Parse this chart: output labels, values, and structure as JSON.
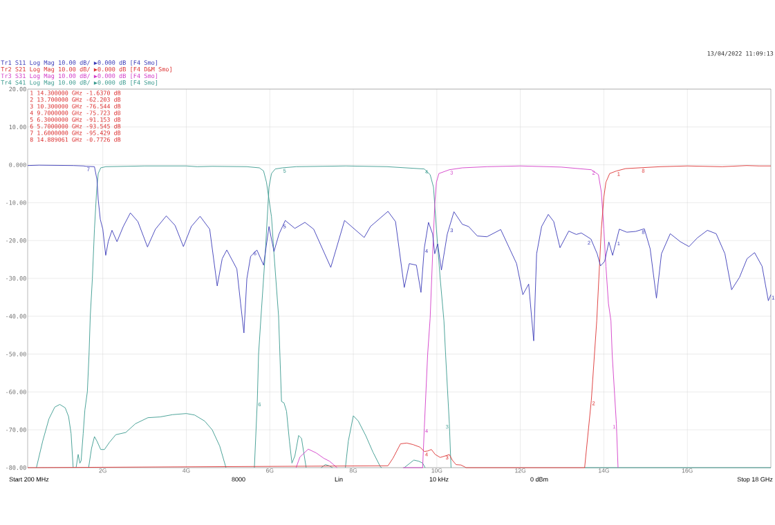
{
  "chart_data": {
    "type": "line",
    "xlim": [
      0.2,
      18
    ],
    "ylim": [
      -80,
      20
    ],
    "xticks": [
      {
        "value": 2,
        "label": "2G"
      },
      {
        "value": 4,
        "label": "4G"
      },
      {
        "value": 6,
        "label": "6G"
      },
      {
        "value": 8,
        "label": "8G"
      },
      {
        "value": 10,
        "label": "10G"
      },
      {
        "value": 12,
        "label": "12G"
      },
      {
        "value": 14,
        "label": "14G"
      },
      {
        "value": 16,
        "label": "16G"
      }
    ],
    "yticks": [
      {
        "value": 20,
        "label": "20.00"
      },
      {
        "value": 10,
        "label": "10.00"
      },
      {
        "value": 0,
        "label": "0.000"
      },
      {
        "value": -10,
        "label": "-10.00"
      },
      {
        "value": -20,
        "label": "-20.00"
      },
      {
        "value": -30,
        "label": "-30.00"
      },
      {
        "value": -40,
        "label": "-40.00"
      },
      {
        "value": -50,
        "label": "-50.00"
      },
      {
        "value": -60,
        "label": "-60.00"
      },
      {
        "value": -70,
        "label": "-70.00"
      },
      {
        "value": -80,
        "label": "-80.00"
      }
    ],
    "grid": true,
    "legend": "top left",
    "series": [
      {
        "name": "Tr1 S11 Log Mag 10.00 dB/ ▶0.000 dB [F4 Smo]",
        "color": "#3a3ab8",
        "x": [
          0.2,
          0.47,
          1.3,
          1.54,
          1.6,
          1.8,
          1.86,
          1.89,
          1.94,
          2.0,
          2.07,
          2.13,
          2.22,
          2.34,
          2.49,
          2.66,
          2.84,
          3.07,
          3.26,
          3.52,
          3.73,
          3.93,
          4.12,
          4.33,
          4.56,
          4.74,
          4.86,
          4.97,
          5.21,
          5.3,
          5.38,
          5.45,
          5.54,
          5.69,
          5.85,
          5.98,
          6.1,
          6.22,
          6.37,
          6.6,
          6.84,
          7.05,
          7.46,
          7.79,
          8.26,
          8.41,
          8.83,
          9.01,
          9.22,
          9.34,
          9.51,
          9.62,
          9.7,
          9.8,
          9.9,
          9.95,
          10.02,
          10.11,
          10.25,
          10.41,
          10.61,
          10.76,
          10.97,
          11.2,
          11.53,
          11.91,
          12.06,
          12.2,
          12.32,
          12.39,
          12.51,
          12.67,
          12.8,
          12.95,
          13.16,
          13.34,
          13.46,
          13.69,
          13.84,
          13.92,
          14.02,
          14.12,
          14.21,
          14.37,
          14.55,
          14.76,
          14.97,
          15.11,
          15.26,
          15.38,
          15.59,
          15.83,
          16.04,
          16.24,
          16.48,
          16.69,
          16.9,
          17.06,
          17.25,
          17.43,
          17.61,
          17.79,
          17.94,
          18.0
        ],
        "values": [
          -0.2,
          -0.1,
          -0.2,
          -0.3,
          -0.4,
          -0.5,
          -3.9,
          -9.2,
          -14.4,
          -17.0,
          -23.9,
          -20.3,
          -17.3,
          -20.3,
          -16.3,
          -12.7,
          -15.0,
          -21.7,
          -17.0,
          -13.5,
          -16.0,
          -21.6,
          -16.3,
          -13.6,
          -17.0,
          -32.0,
          -24.8,
          -22.5,
          -27.5,
          -36.6,
          -44.4,
          -30.1,
          -24.2,
          -22.5,
          -26.5,
          -16.3,
          -22.9,
          -18.3,
          -14.7,
          -16.8,
          -15.2,
          -17.0,
          -27.1,
          -14.7,
          -19.2,
          -16.3,
          -12.3,
          -15.0,
          -32.4,
          -26.1,
          -26.5,
          -33.7,
          -22.0,
          -15.2,
          -18.3,
          -23.5,
          -20.9,
          -27.8,
          -18.3,
          -12.4,
          -15.7,
          -16.3,
          -18.8,
          -19.0,
          -17.1,
          -26.1,
          -34.3,
          -31.5,
          -46.5,
          -23.5,
          -16.3,
          -13.1,
          -15.0,
          -21.9,
          -17.5,
          -18.4,
          -18.0,
          -19.6,
          -23.5,
          -26.7,
          -25.5,
          -20.4,
          -23.9,
          -17.0,
          -17.8,
          -17.6,
          -16.9,
          -22.2,
          -35.2,
          -23.5,
          -18.2,
          -20.3,
          -21.6,
          -19.3,
          -17.3,
          -18.2,
          -23.5,
          -33.0,
          -29.7,
          -24.8,
          -23.2,
          -26.8,
          -35.9,
          -34.3
        ]
      },
      {
        "name": "Tr2 S21 Log Mag 10.00 dB/ ▶0.000 dB [F4 D&M Smo]",
        "color": "#dc3232",
        "x": [
          0.2,
          8.83,
          8.95,
          9.13,
          9.28,
          9.43,
          9.6,
          9.7,
          9.78,
          9.87,
          9.96,
          10.08,
          10.2,
          10.3,
          10.37,
          10.46,
          10.58,
          10.7,
          13.54,
          13.7,
          13.83,
          13.88,
          13.94,
          14.0,
          14.05,
          14.14,
          14.3,
          14.52,
          14.889061,
          15.35,
          16.0,
          16.83,
          17.42,
          17.72,
          18.0
        ],
        "values": [
          -80,
          -79.5,
          -77.5,
          -73.7,
          -73.5,
          -73.9,
          -74.6,
          -75.723,
          -75.6,
          -75.2,
          -76.5,
          -77.3,
          -76.9,
          -76.544,
          -78.0,
          -79.2,
          -79.3,
          -80,
          -80,
          -62.203,
          -41.2,
          -30.1,
          -17.0,
          -8.5,
          -4.6,
          -2.3,
          -1.637,
          -1.0,
          -0.7726,
          -0.5,
          -0.3,
          -0.5,
          -0.2,
          -0.3,
          -0.3
        ]
      },
      {
        "name": "Tr3 S31 Log Mag 10.00 dB/ ▶0.000 dB [F4 Smo]",
        "color": "#d23cc8",
        "x": [
          6.63,
          6.72,
          6.92,
          7.11,
          7.29,
          7.43,
          7.61,
          8.2,
          9.19,
          9.66,
          9.7,
          9.78,
          9.84,
          9.9,
          9.95,
          9.99,
          10.05,
          10.3,
          10.61,
          11.2,
          12.0,
          12.98,
          13.7,
          13.87,
          13.94,
          14.0,
          14.05,
          14.11,
          14.17,
          14.2,
          14.3,
          14.34
        ],
        "values": [
          -80,
          -77.2,
          -75.1,
          -76.1,
          -77.5,
          -78.3,
          -80,
          null,
          -80,
          -80,
          -69.5,
          -50.1,
          -40.5,
          -23.5,
          -10.5,
          -4.6,
          -2.3,
          -1.3,
          -0.8,
          -0.5,
          -0.3,
          -0.6,
          -1.3,
          -2.6,
          -7.2,
          -17.0,
          -26.8,
          -36.6,
          -41.2,
          -50.1,
          -68.4,
          -80
        ]
      },
      {
        "name": "Tr4 S41 Log Mag 10.00 dB/ ▶0.000 dB [F4 Smo]",
        "color": "#3a9a8e",
        "x": [
          1.66,
          1.73,
          1.8,
          1.86,
          1.95,
          2.04,
          2.16,
          2.31,
          2.55,
          2.78,
          3.08,
          3.37,
          3.67,
          4.0,
          4.2,
          4.44,
          4.62,
          4.8,
          4.95,
          5.3,
          5.63,
          5.7,
          5.73,
          5.79,
          5.89,
          5.98,
          6.04,
          6.13,
          6.3,
          6.63,
          7.82,
          8.81,
          9.7,
          9.84,
          9.92,
          9.99,
          10.08,
          10.17,
          10.21,
          10.3,
          10.34,
          12.0,
          13.54,
          18.0
        ],
        "values": [
          -80,
          -74.9,
          -71.8,
          -73.0,
          -75.2,
          -75.2,
          -73.3,
          -71.3,
          -70.7,
          -68.4,
          -66.8,
          -66.6,
          -66.0,
          -65.7,
          -66.1,
          -67.7,
          -70.0,
          -74.3,
          -80,
          null,
          -80,
          -62.5,
          -50.1,
          -39.9,
          -23.5,
          -5.9,
          -2.3,
          -1.1,
          -0.8,
          -0.5,
          -0.3,
          -0.5,
          -1.1,
          -2.6,
          -5.9,
          -17.0,
          -30.0,
          -41.2,
          -50.1,
          -68.4,
          -80,
          null,
          -80,
          -80
        ]
      },
      {
        "color": "#3a9a8e",
        "x": [
          0.41,
          0.56,
          0.71,
          0.85,
          0.97,
          1.1,
          1.18,
          1.24,
          1.29,
          1.32,
          1.36,
          1.41,
          1.45,
          1.48,
          1.53,
          1.57,
          1.63,
          1.67,
          1.7,
          1.75,
          1.8,
          1.85,
          1.89,
          1.95,
          2.07,
          3.0,
          4.0,
          4.26,
          4.62,
          5.45,
          5.75,
          5.85,
          5.92,
          6.04,
          6.1,
          6.21,
          6.28,
          6.34,
          6.4,
          6.47,
          6.53,
          6.6,
          6.69,
          6.76,
          6.87,
          7.05,
          7.23,
          7.33,
          7.42,
          7.5,
          7.65,
          7.81,
          7.88,
          8.0,
          8.12,
          8.3,
          8.47,
          8.65,
          8.68,
          8.95,
          9.22,
          9.45,
          9.57,
          9.66,
          9.72
        ],
        "values": [
          -80,
          -73.0,
          -67.1,
          -64.0,
          -63.3,
          -64.2,
          -66.5,
          -71.0,
          -80,
          null,
          -80,
          -76.5,
          -78.8,
          -78.2,
          -71.0,
          -64.8,
          -59.9,
          -50.1,
          -39.9,
          -30.1,
          -17.0,
          -7.2,
          -2.3,
          -0.8,
          -0.5,
          -0.3,
          -0.3,
          -0.5,
          -0.4,
          -0.5,
          -0.8,
          -1.6,
          -4.6,
          -13.7,
          -23.5,
          -40.0,
          -62.5,
          -62.9,
          -65.1,
          -73.0,
          -78.8,
          -76.9,
          -71.5,
          -72.3,
          -80,
          null,
          -80,
          -79.2,
          -79.5,
          -80,
          null,
          -80,
          -73.0,
          -66.3,
          -67.7,
          -71.6,
          -75.9,
          -79.8,
          -80,
          null,
          -80,
          -78.0,
          -78.3,
          -78.8,
          -80
        ]
      }
    ],
    "annotations": [
      "13/04/2022 11:09:13",
      "1 14.300000 GHz -1.6370 dB",
      "2 13.700000 GHz -62.203 dB",
      "3 10.300000 GHz -76.544 dB",
      "4 9.7000000 GHz -75.723 dB",
      "5 6.3000000 GHz -91.153 dB",
      "6 5.7000000 GHz -93.545 dB",
      "7 1.6000000 GHz -95.429 dB",
      "8 14.889061 GHz -0.7726 dB",
      "Start 200 MHz",
      "8000",
      "Lin",
      "10 kHz",
      "0 dBm",
      "Stop 18 GHz",
      {
        "text": "7",
        "x": 1.6,
        "y": -0.4
      },
      {
        "text": "6",
        "x": 5.7,
        "y": -22.6
      },
      {
        "text": "5",
        "x": 6.3,
        "y": -15.5
      },
      {
        "text": "4",
        "x": 9.7,
        "y": -22.0
      },
      {
        "text": "3",
        "x": 10.3,
        "y": -16.5
      },
      {
        "text": "2",
        "x": 13.7,
        "y": -19.8
      },
      {
        "text": "1",
        "x": 14.3,
        "y": -20.0
      },
      {
        "text": "8",
        "x": 14.889061,
        "y": -17.0
      },
      {
        "text": "1",
        "x": 18,
        "y": -34.3
      },
      {
        "text": "6",
        "x": 5.7,
        "y": -62.5
      },
      {
        "text": "5",
        "x": 6.3,
        "y": -0.8
      },
      {
        "text": "4",
        "x": 9.7,
        "y": -1.1
      },
      {
        "text": "3",
        "x": 10.3,
        "y": -68.4
      },
      {
        "text": "4",
        "x": 9.7,
        "y": -69.5
      },
      {
        "text": "3",
        "x": 10.3,
        "y": -1.3
      },
      {
        "text": "2",
        "x": 13.7,
        "y": -1.3
      },
      {
        "text": "1",
        "x": 14.3,
        "y": -68.4
      },
      {
        "text": "4",
        "x": 9.7,
        "y": -75.723
      },
      {
        "text": "3",
        "x": 10.3,
        "y": -76.544
      },
      {
        "text": "2",
        "x": 13.7,
        "y": -62.203
      },
      {
        "text": "1",
        "x": 14.3,
        "y": -1.637
      },
      {
        "text": "8",
        "x": 14.889061,
        "y": -0.7726
      }
    ]
  }
}
